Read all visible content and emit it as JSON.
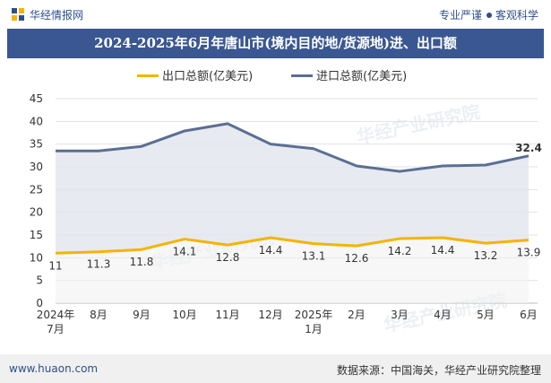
{
  "header": {
    "brand": "华经情报网",
    "tagline_left": "专业严谨",
    "tagline_right": "客观科学"
  },
  "title": "2024-2025年6月年唐山市(境内目的地/货源地)进、出口额",
  "footer": {
    "site": "www.huaon.com",
    "source": "数据来源：中国海关，华经产业研究院整理"
  },
  "watermark": "华经产业研究院",
  "colors": {
    "export": "#f5b400",
    "import": "#5b6f93",
    "import_fill": "#e3e6ee",
    "title_bg": "#3a5791"
  },
  "chart_data": {
    "type": "area",
    "categories": [
      "2024年7月",
      "8月",
      "9月",
      "10月",
      "11月",
      "12月",
      "2025年1月",
      "2月",
      "3月",
      "4月",
      "5月",
      "6月"
    ],
    "series": [
      {
        "name": "出口总额(亿美元)",
        "values": [
          11,
          11.3,
          11.8,
          14.1,
          12.8,
          14.4,
          13.1,
          12.6,
          14.2,
          14.4,
          13.2,
          13.9
        ],
        "labels": [
          "11",
          "11.3",
          "11.8",
          "14.1",
          "12.8",
          "14.4",
          "13.1",
          "12.6",
          "14.2",
          "14.4",
          "13.2",
          "13.9"
        ]
      },
      {
        "name": "进口总额(亿美元)",
        "values": [
          33.5,
          33.5,
          34.5,
          37.9,
          39.5,
          35.0,
          34.0,
          30.2,
          29.0,
          30.2,
          30.4,
          32.4
        ],
        "labels": [
          "",
          "",
          "",
          "",
          "",
          "",
          "",
          "",
          "",
          "",
          "",
          "32.4"
        ]
      }
    ],
    "ylim": [
      0,
      45
    ],
    "yticks": [
      "0",
      "5",
      "10",
      "15",
      "20",
      "25",
      "30",
      "35",
      "40",
      "45"
    ],
    "grid": true,
    "legend_position": "top"
  }
}
